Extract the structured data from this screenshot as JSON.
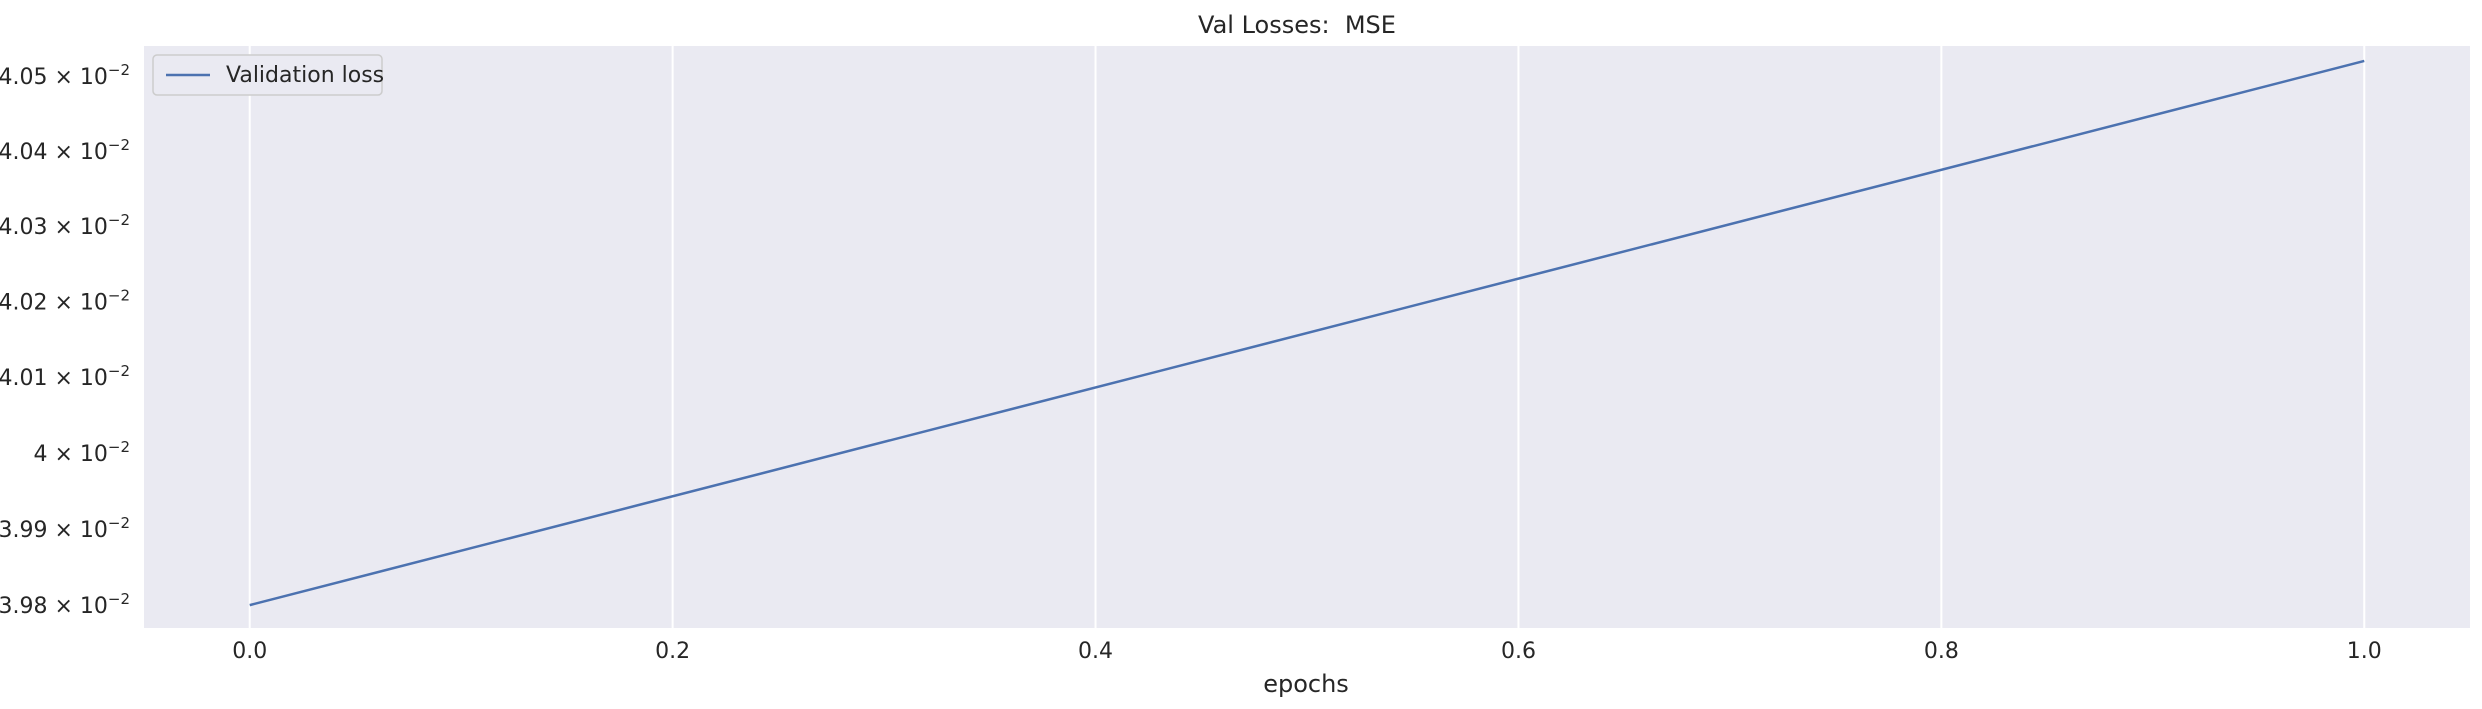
{
  "chart_data": {
    "type": "line",
    "title": "Val Losses:  MSE",
    "xlabel": "epochs",
    "ylabel": "",
    "yscale": "log",
    "grid": true,
    "legend_placement": "top-left",
    "xlim": [
      -0.05,
      1.05
    ],
    "ylim": [
      0.03977,
      0.04054
    ],
    "xticks": [
      0.0,
      0.2,
      0.4,
      0.6,
      0.8,
      1.0
    ],
    "xtick_labels": [
      "0.0",
      "0.2",
      "0.4",
      "0.6",
      "0.8",
      "1.0"
    ],
    "yticks": [
      0.0398,
      0.0399,
      0.04,
      0.0401,
      0.0402,
      0.0403,
      0.0404,
      0.0405
    ],
    "ytick_labels": [
      {
        "mantissa": "3.98",
        "base": "10",
        "exponent": "−2"
      },
      {
        "mantissa": "3.99",
        "base": "10",
        "exponent": "−2"
      },
      {
        "mantissa": "4",
        "base": "10",
        "exponent": "−2"
      },
      {
        "mantissa": "4.01",
        "base": "10",
        "exponent": "−2"
      },
      {
        "mantissa": "4.02",
        "base": "10",
        "exponent": "−2"
      },
      {
        "mantissa": "4.03",
        "base": "10",
        "exponent": "−2"
      },
      {
        "mantissa": "4.04",
        "base": "10",
        "exponent": "−2"
      },
      {
        "mantissa": "4.05",
        "base": "10",
        "exponent": "−2"
      }
    ],
    "series": [
      {
        "name": "Validation loss",
        "color": "#4c72b0",
        "x": [
          0,
          1
        ],
        "y": [
          0.0398,
          0.04052
        ]
      }
    ],
    "colors": {
      "plot_background": "#eaeaf2",
      "grid": "#ffffff",
      "text": "#262626"
    }
  }
}
